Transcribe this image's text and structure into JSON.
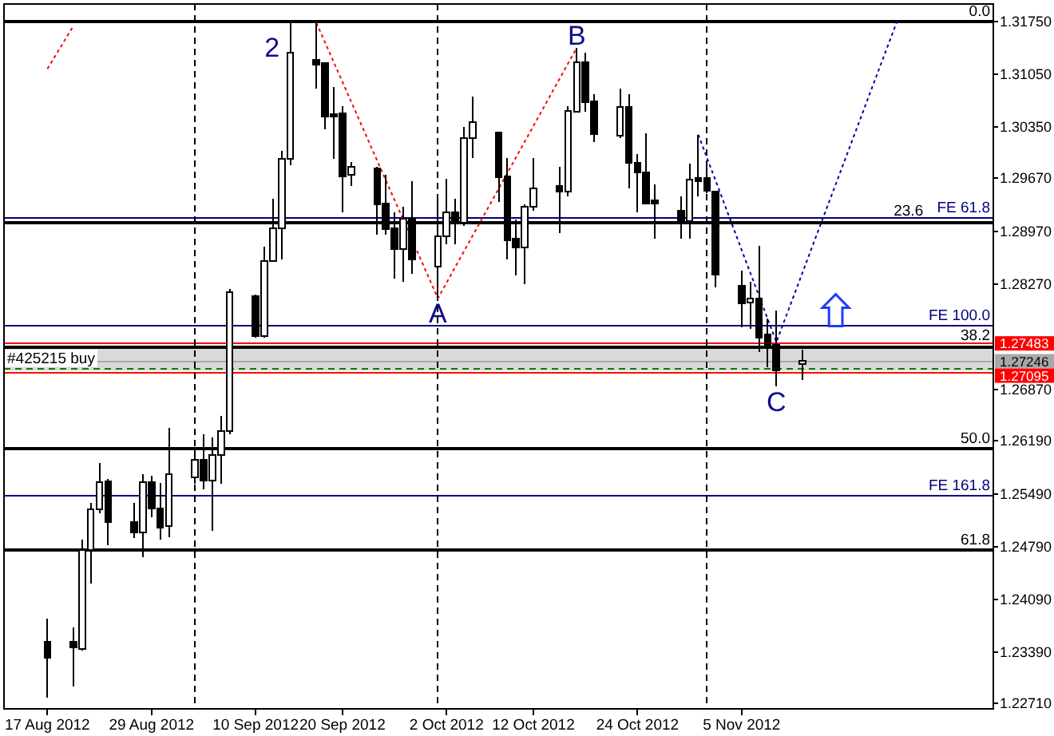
{
  "chart_data": {
    "type": "candlestick",
    "x": [
      "2012-08-17",
      "2012-08-20",
      "2012-08-21",
      "2012-08-22",
      "2012-08-23",
      "2012-08-24",
      "2012-08-27",
      "2012-08-28",
      "2012-08-29",
      "2012-08-30",
      "2012-08-31",
      "2012-09-03",
      "2012-09-04",
      "2012-09-05",
      "2012-09-06",
      "2012-09-07",
      "2012-09-10",
      "2012-09-11",
      "2012-09-12",
      "2012-09-13",
      "2012-09-14",
      "2012-09-17",
      "2012-09-18",
      "2012-09-19",
      "2012-09-20",
      "2012-09-21",
      "2012-09-24",
      "2012-09-25",
      "2012-09-26",
      "2012-09-27",
      "2012-09-28",
      "2012-10-01",
      "2012-10-02",
      "2012-10-03",
      "2012-10-04",
      "2012-10-05",
      "2012-10-08",
      "2012-10-09",
      "2012-10-10",
      "2012-10-11",
      "2012-10-12",
      "2012-10-15",
      "2012-10-16",
      "2012-10-17",
      "2012-10-18",
      "2012-10-19",
      "2012-10-22",
      "2012-10-23",
      "2012-10-24",
      "2012-10-25",
      "2012-10-26",
      "2012-10-29",
      "2012-10-30",
      "2012-10-31",
      "2012-11-01",
      "2012-11-02",
      "2012-11-05",
      "2012-11-06",
      "2012-11-07",
      "2012-11-08",
      "2012-11-09",
      "2012-11-12"
    ],
    "ohlc": [
      [
        1.2353,
        1.2383,
        1.2279,
        1.2332
      ],
      [
        1.2353,
        1.2372,
        1.2294,
        1.2345
      ],
      [
        1.2343,
        1.2488,
        1.2341,
        1.2474
      ],
      [
        1.2474,
        1.2537,
        1.243,
        1.2528
      ],
      [
        1.2528,
        1.259,
        1.2523,
        1.2564
      ],
      [
        1.2565,
        1.2569,
        1.2481,
        1.2511
      ],
      [
        1.2512,
        1.2537,
        1.249,
        1.2498
      ],
      [
        1.2498,
        1.2575,
        1.2465,
        1.2564
      ],
      [
        1.2564,
        1.2573,
        1.2518,
        1.253
      ],
      [
        1.253,
        1.2563,
        1.2488,
        1.2504
      ],
      [
        1.2506,
        1.2636,
        1.2491,
        1.2575
      ],
      [
        1.2571,
        1.2611,
        1.2562,
        1.2594
      ],
      [
        1.2594,
        1.2628,
        1.2555,
        1.2567
      ],
      [
        1.2567,
        1.2624,
        1.25,
        1.26
      ],
      [
        1.26,
        1.2652,
        1.2562,
        1.2632
      ],
      [
        1.2632,
        1.282,
        1.2628,
        1.2816
      ],
      [
        1.2811,
        1.2813,
        1.2756,
        1.2758
      ],
      [
        1.2758,
        1.2876,
        1.2756,
        1.2857
      ],
      [
        1.2857,
        1.294,
        1.2857,
        1.2901
      ],
      [
        1.2901,
        1.3003,
        1.2859,
        1.2993
      ],
      [
        1.2993,
        1.3175,
        1.2984,
        1.3133
      ],
      [
        1.3124,
        1.3173,
        1.3086,
        1.3118
      ],
      [
        1.312,
        1.3121,
        1.3032,
        1.3049
      ],
      [
        1.3052,
        1.3088,
        1.2993,
        1.3049
      ],
      [
        1.3053,
        1.3063,
        1.2922,
        1.297
      ],
      [
        1.2972,
        1.2989,
        1.2957,
        1.2982
      ],
      [
        1.298,
        1.2982,
        1.2892,
        1.2932
      ],
      [
        1.2934,
        1.2972,
        1.2892,
        1.29
      ],
      [
        1.2901,
        1.2922,
        1.2834,
        1.2873
      ],
      [
        1.2873,
        1.2929,
        1.283,
        1.2913
      ],
      [
        1.2913,
        1.2963,
        1.2841,
        1.286
      ],
      [
        1.285,
        1.2946,
        1.2809,
        1.289
      ],
      [
        1.289,
        1.2966,
        1.288,
        1.2922
      ],
      [
        1.2922,
        1.294,
        1.288,
        1.291
      ],
      [
        1.2908,
        1.3035,
        1.2904,
        1.302
      ],
      [
        1.302,
        1.3075,
        1.2994,
        1.3041
      ],
      [
        1.3028,
        1.3028,
        1.2936,
        1.2968
      ],
      [
        1.297,
        1.2994,
        1.286,
        1.2885
      ],
      [
        1.2887,
        1.2912,
        1.2838,
        1.2875
      ],
      [
        1.2875,
        1.2933,
        1.2827,
        1.2929
      ],
      [
        1.2929,
        1.2994,
        1.2924,
        1.2954
      ],
      [
        1.2957,
        1.2982,
        1.2894,
        1.2949
      ],
      [
        1.2949,
        1.3063,
        1.2943,
        1.3056
      ],
      [
        1.3055,
        1.314,
        1.3055,
        1.3121
      ],
      [
        1.3121,
        1.3134,
        1.3055,
        1.3068
      ],
      [
        1.3069,
        1.3078,
        1.3015,
        1.3026
      ],
      [
        1.3023,
        1.3086,
        1.302,
        1.3062
      ],
      [
        1.3062,
        1.3079,
        1.2954,
        1.2988
      ],
      [
        1.2988,
        1.2999,
        1.2922,
        1.2975
      ],
      [
        1.2975,
        1.3027,
        1.2933,
        1.2934
      ],
      [
        1.2938,
        1.2959,
        1.2887,
        1.2934
      ],
      [
        1.2924,
        1.2943,
        1.2887,
        1.291
      ],
      [
        1.291,
        1.2986,
        1.2887,
        1.2965
      ],
      [
        1.2967,
        1.3025,
        1.2943,
        1.2963
      ],
      [
        1.2967,
        1.2986,
        1.2947,
        1.295
      ],
      [
        1.2949,
        1.295,
        1.2823,
        1.2839
      ],
      [
        1.2825,
        1.2845,
        1.277,
        1.2801
      ],
      [
        1.2802,
        1.283,
        1.2768,
        1.2808
      ],
      [
        1.2808,
        1.2878,
        1.2737,
        1.2756
      ],
      [
        1.276,
        1.2781,
        1.2717,
        1.2742
      ],
      [
        1.2746,
        1.2792,
        1.2691,
        1.2712
      ],
      [
        1.2721,
        1.274,
        1.27,
        1.2725
      ]
    ],
    "color": "#000000",
    "colors": [
      "#000000",
      "#000000",
      "#ffffff",
      "#ffffff",
      "#ffffff",
      "#000000",
      "#000000",
      "#ffffff",
      "#000000",
      "#000000",
      "#ffffff",
      "#ffffff",
      "#000000",
      "#ffffff",
      "#ffffff",
      "#ffffff",
      "#000000",
      "#ffffff",
      "#ffffff",
      "#ffffff",
      "#ffffff",
      "#000000",
      "#000000",
      "#000000",
      "#000000",
      "#ffffff",
      "#000000",
      "#000000",
      "#000000",
      "#ffffff",
      "#000000",
      "#ffffff",
      "#ffffff",
      "#000000",
      "#ffffff",
      "#ffffff",
      "#000000",
      "#000000",
      "#000000",
      "#ffffff",
      "#ffffff",
      "#000000",
      "#ffffff",
      "#ffffff",
      "#000000",
      "#000000",
      "#ffffff",
      "#000000",
      "#000000",
      "#000000",
      "#000000",
      "#000000",
      "#ffffff",
      "#000000",
      "#000000",
      "#000000",
      "#000000",
      "#ffffff",
      "#000000",
      "#000000",
      "#000000",
      "#ffffff"
    ],
    "series": [
      {
        "type": "line",
        "x": [
          "2012-08-17",
          "2012-08-20"
        ],
        "values": [
          1.3112,
          1.3169
        ],
        "color": "#ff0000",
        "line_style": "dotted"
      },
      {
        "type": "line",
        "x": [
          "2012-09-17",
          "2012-10-01",
          "2012-10-17"
        ],
        "values": [
          1.3173,
          1.2808,
          1.314
        ],
        "color": "#ff0000",
        "line_style": "dotted"
      },
      {
        "type": "line",
        "x": [
          "2012-10-31",
          "2012-11-09",
          "2012-11-23"
        ],
        "values": [
          1.3025,
          1.275,
          1.3178
        ],
        "color": "#0000a0",
        "line_style": "dotted"
      }
    ],
    "xlim": [
      "2012-08-12",
      "2012-12-04"
    ],
    "xticks": [
      {
        "value": "2012-08-17",
        "label": "17 Aug 2012"
      },
      {
        "value": "2012-08-29",
        "label": "29 Aug 2012"
      },
      {
        "value": "2012-09-10",
        "label": "10 Sep 2012"
      },
      {
        "value": "2012-09-20",
        "label": "20 Sep 2012"
      },
      {
        "value": "2012-10-02",
        "label": "2 Oct 2012"
      },
      {
        "value": "2012-10-12",
        "label": "12 Oct 2012"
      },
      {
        "value": "2012-10-24",
        "label": "24 Oct 2012"
      },
      {
        "value": "2012-11-05",
        "label": "5 Nov 2012"
      }
    ],
    "ylim": [
      1.2264,
      1.3198
    ],
    "yticks": [
      {
        "value": 1.3175,
        "label": "1.31750"
      },
      {
        "value": 1.3105,
        "label": "1.31050"
      },
      {
        "value": 1.3035,
        "label": "1.30350"
      },
      {
        "value": 1.2967,
        "label": "1.29670"
      },
      {
        "value": 1.2897,
        "label": "1.28970"
      },
      {
        "value": 1.2827,
        "label": "1.28270"
      },
      {
        "value": 1.2687,
        "label": "1.26870"
      },
      {
        "value": 1.2619,
        "label": "1.26190"
      },
      {
        "value": 1.2549,
        "label": "1.25490"
      },
      {
        "value": 1.2479,
        "label": "1.24790"
      },
      {
        "value": 1.2409,
        "label": "1.24090"
      },
      {
        "value": 1.2339,
        "label": "1.23390"
      },
      {
        "value": 1.2271,
        "label": "1.22710"
      }
    ],
    "bands": [
      {
        "axis": "y",
        "from": 1.2712,
        "to": 1.2743,
        "color": "#d9d9d9"
      }
    ],
    "ref_lines": [
      {
        "axis": "y",
        "value": 1.3175,
        "color": "#000000"
      },
      {
        "axis": "y",
        "value": 1.2908,
        "color": "#000000"
      },
      {
        "axis": "y",
        "value": 1.2743,
        "color": "#000000"
      },
      {
        "axis": "y",
        "value": 1.2609,
        "color": "#000000"
      },
      {
        "axis": "y",
        "value": 1.2475,
        "color": "#000000"
      },
      {
        "axis": "y",
        "value": 1.2914,
        "label": "FE 61.8",
        "color": "#000080"
      },
      {
        "axis": "y",
        "value": 1.2772,
        "label": "FE 100.0",
        "color": "#000080"
      },
      {
        "axis": "y",
        "value": 1.2546,
        "label": "FE 161.8",
        "color": "#000080"
      },
      {
        "axis": "y",
        "value": 1.27483,
        "label": "1.27483",
        "color": "#ff0000"
      },
      {
        "axis": "y",
        "value": 1.27246,
        "label": "1.27246",
        "color": "#a8a8a8"
      },
      {
        "axis": "y",
        "value": 1.27095,
        "label": "1.27095",
        "color": "#ff0000"
      },
      {
        "axis": "y",
        "value": 1.2715,
        "color": "#008000",
        "line_style": "dashed"
      },
      {
        "axis": "x",
        "value": "2012-09-03",
        "color": "#000000",
        "line_style": "dashed"
      },
      {
        "axis": "x",
        "value": "2012-10-01",
        "color": "#000000",
        "line_style": "dashed"
      },
      {
        "axis": "x",
        "value": "2012-11-01",
        "color": "#000000",
        "line_style": "dashed"
      }
    ],
    "annotations": [
      {
        "text": "2",
        "x": "2012-09-14",
        "y": 1.3175
      },
      {
        "text": "A",
        "x": "2012-10-01",
        "y": 1.2808
      },
      {
        "text": "B",
        "x": "2012-10-17",
        "y": 1.314
      },
      {
        "text": "C",
        "x": "2012-11-09",
        "y": 1.2691
      },
      {
        "text": "0.0",
        "x": "2012-12-04",
        "y": 1.3175
      },
      {
        "text": "23.6",
        "x": "2012-11-26T07:00",
        "y": 1.2908
      },
      {
        "text": "38.2",
        "x": "2012-12-04",
        "y": 1.2743
      },
      {
        "text": "50.0",
        "x": "2012-12-04",
        "y": 1.2609
      },
      {
        "text": "61.8",
        "x": "2012-12-04",
        "y": 1.2475
      },
      {
        "text": "#425215 buy",
        "x": "2012-08-12",
        "y": 1.2715
      }
    ]
  }
}
